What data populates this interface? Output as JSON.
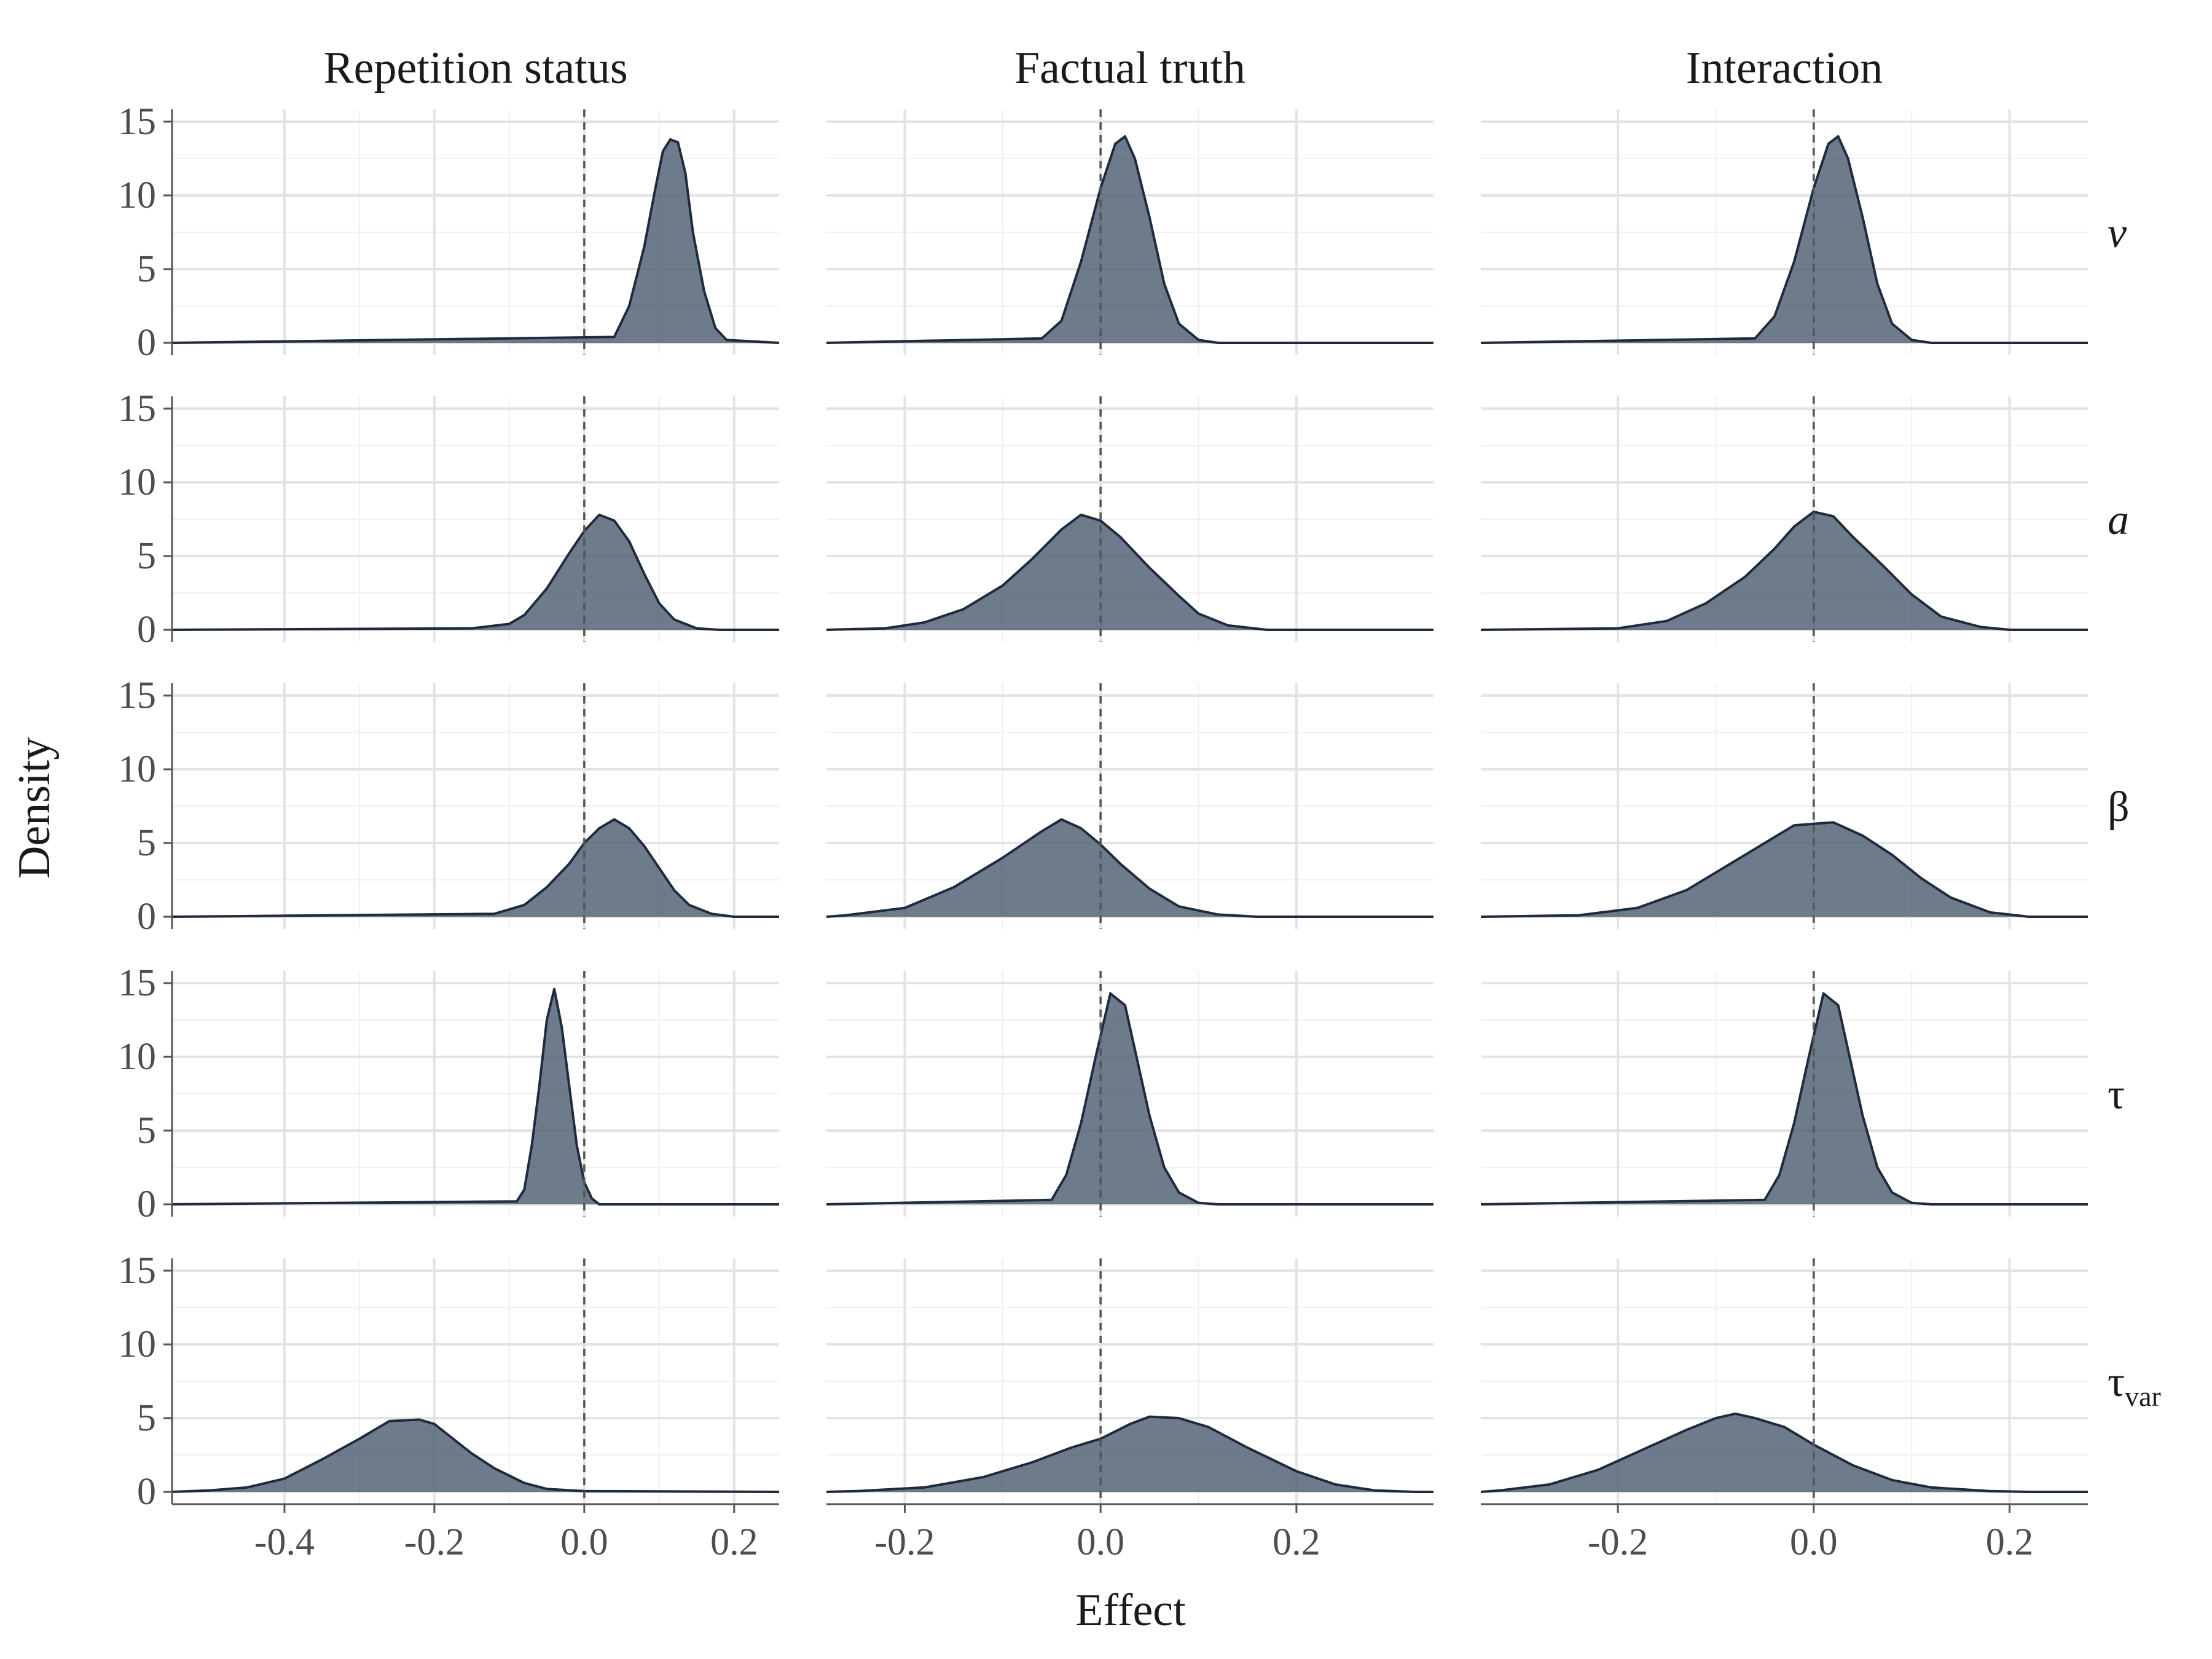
{
  "chart_data": {
    "type": "area",
    "xlabel": "Effect",
    "ylabel": "Density",
    "ylim": [
      0,
      15
    ],
    "yticks": [
      0,
      5,
      10,
      15
    ],
    "grid": true,
    "reference_line_x": 0,
    "fill_color": "#4a5a6e",
    "line_color": "#1f2b3d",
    "columns": [
      {
        "label": "Repetition status",
        "xlim": [
          -0.55,
          0.26
        ],
        "xticks": [
          -0.4,
          -0.2,
          0.0,
          0.2
        ],
        "xtick_labels": [
          "-0.4",
          "-0.2",
          "0.0",
          "0.2"
        ]
      },
      {
        "label": "Factual truth",
        "xlim": [
          -0.28,
          0.34
        ],
        "xticks": [
          -0.2,
          0.0,
          0.2
        ],
        "xtick_labels": [
          "-0.2",
          "0.0",
          "0.2"
        ]
      },
      {
        "label": "Interaction",
        "xlim": [
          -0.34,
          0.28
        ],
        "xticks": [
          -0.2,
          0.0,
          0.2
        ],
        "xtick_labels": [
          "-0.2",
          "0.0",
          "0.2"
        ]
      }
    ],
    "rows": [
      {
        "label": "v",
        "italic": true,
        "subscript": ""
      },
      {
        "label": "a",
        "italic": true,
        "subscript": ""
      },
      {
        "label": "β",
        "italic": false,
        "subscript": ""
      },
      {
        "label": "τ",
        "italic": false,
        "subscript": ""
      },
      {
        "label": "τ",
        "italic": false,
        "subscript": "var"
      }
    ],
    "panels": [
      [
        {
          "peak": 13.8,
          "points": [
            [
              0.04,
              0.4
            ],
            [
              0.06,
              2.5
            ],
            [
              0.08,
              6.5
            ],
            [
              0.095,
              10.5
            ],
            [
              0.105,
              13.0
            ],
            [
              0.115,
              13.8
            ],
            [
              0.125,
              13.6
            ],
            [
              0.135,
              11.5
            ],
            [
              0.145,
              7.5
            ],
            [
              0.16,
              3.5
            ],
            [
              0.175,
              1.0
            ],
            [
              0.19,
              0.2
            ]
          ]
        },
        {
          "peak": 7.8,
          "points": [
            [
              -0.15,
              0.1
            ],
            [
              -0.1,
              0.4
            ],
            [
              -0.08,
              1.0
            ],
            [
              -0.05,
              2.8
            ],
            [
              -0.02,
              5.2
            ],
            [
              0.0,
              6.7
            ],
            [
              0.02,
              7.8
            ],
            [
              0.04,
              7.4
            ],
            [
              0.06,
              6.0
            ],
            [
              0.08,
              3.8
            ],
            [
              0.1,
              1.8
            ],
            [
              0.12,
              0.7
            ],
            [
              0.15,
              0.1
            ],
            [
              0.18,
              0.0
            ]
          ]
        },
        {
          "peak": 6.6,
          "points": [
            [
              -0.12,
              0.2
            ],
            [
              -0.08,
              0.8
            ],
            [
              -0.05,
              2.0
            ],
            [
              -0.02,
              3.6
            ],
            [
              0.0,
              5.0
            ],
            [
              0.02,
              6.0
            ],
            [
              0.04,
              6.6
            ],
            [
              0.06,
              6.0
            ],
            [
              0.08,
              4.8
            ],
            [
              0.1,
              3.3
            ],
            [
              0.12,
              1.8
            ],
            [
              0.14,
              0.8
            ],
            [
              0.17,
              0.2
            ],
            [
              0.2,
              0.0
            ]
          ]
        },
        {
          "peak": 14.6,
          "points": [
            [
              -0.09,
              0.2
            ],
            [
              -0.08,
              1.0
            ],
            [
              -0.07,
              4.0
            ],
            [
              -0.06,
              8.0
            ],
            [
              -0.05,
              12.5
            ],
            [
              -0.04,
              14.6
            ],
            [
              -0.03,
              12.0
            ],
            [
              -0.02,
              8.0
            ],
            [
              -0.01,
              4.0
            ],
            [
              0.0,
              1.5
            ],
            [
              0.01,
              0.4
            ],
            [
              0.02,
              0.0
            ]
          ]
        },
        {
          "peak": 4.9,
          "points": [
            [
              -0.5,
              0.1
            ],
            [
              -0.45,
              0.3
            ],
            [
              -0.4,
              0.9
            ],
            [
              -0.35,
              2.2
            ],
            [
              -0.3,
              3.6
            ],
            [
              -0.26,
              4.8
            ],
            [
              -0.22,
              4.9
            ],
            [
              -0.2,
              4.6
            ],
            [
              -0.18,
              3.8
            ],
            [
              -0.15,
              2.6
            ],
            [
              -0.12,
              1.6
            ],
            [
              -0.08,
              0.6
            ],
            [
              -0.05,
              0.2
            ],
            [
              0.0,
              0.05
            ]
          ]
        }
      ],
      [
        {
          "peak": 14.0,
          "points": [
            [
              -0.06,
              0.3
            ],
            [
              -0.04,
              1.5
            ],
            [
              -0.02,
              5.5
            ],
            [
              0.0,
              10.5
            ],
            [
              0.015,
              13.5
            ],
            [
              0.025,
              14.0
            ],
            [
              0.035,
              12.5
            ],
            [
              0.05,
              8.5
            ],
            [
              0.065,
              4.0
            ],
            [
              0.08,
              1.3
            ],
            [
              0.1,
              0.2
            ],
            [
              0.12,
              0.0
            ]
          ]
        },
        {
          "peak": 7.8,
          "points": [
            [
              -0.22,
              0.1
            ],
            [
              -0.18,
              0.5
            ],
            [
              -0.14,
              1.4
            ],
            [
              -0.1,
              3.0
            ],
            [
              -0.07,
              4.8
            ],
            [
              -0.04,
              6.8
            ],
            [
              -0.02,
              7.8
            ],
            [
              0.0,
              7.4
            ],
            [
              0.02,
              6.3
            ],
            [
              0.05,
              4.2
            ],
            [
              0.08,
              2.3
            ],
            [
              0.1,
              1.1
            ],
            [
              0.13,
              0.3
            ],
            [
              0.17,
              0.0
            ]
          ]
        },
        {
          "peak": 6.6,
          "points": [
            [
              -0.26,
              0.1
            ],
            [
              -0.2,
              0.6
            ],
            [
              -0.15,
              2.0
            ],
            [
              -0.1,
              4.0
            ],
            [
              -0.06,
              5.8
            ],
            [
              -0.04,
              6.6
            ],
            [
              -0.02,
              6.0
            ],
            [
              0.0,
              4.9
            ],
            [
              0.02,
              3.6
            ],
            [
              0.05,
              1.9
            ],
            [
              0.08,
              0.7
            ],
            [
              0.12,
              0.15
            ],
            [
              0.16,
              0.0
            ]
          ]
        },
        {
          "peak": 14.3,
          "points": [
            [
              -0.05,
              0.3
            ],
            [
              -0.035,
              2.0
            ],
            [
              -0.02,
              5.5
            ],
            [
              -0.005,
              10.0
            ],
            [
              0.01,
              14.3
            ],
            [
              0.025,
              13.5
            ],
            [
              0.035,
              10.5
            ],
            [
              0.05,
              6.0
            ],
            [
              0.065,
              2.5
            ],
            [
              0.08,
              0.8
            ],
            [
              0.1,
              0.1
            ],
            [
              0.12,
              0.0
            ]
          ]
        },
        {
          "peak": 5.1,
          "points": [
            [
              -0.25,
              0.05
            ],
            [
              -0.18,
              0.3
            ],
            [
              -0.12,
              1.0
            ],
            [
              -0.07,
              2.0
            ],
            [
              -0.03,
              3.0
            ],
            [
              0.0,
              3.6
            ],
            [
              0.03,
              4.6
            ],
            [
              0.05,
              5.1
            ],
            [
              0.08,
              5.0
            ],
            [
              0.11,
              4.4
            ],
            [
              0.15,
              3.0
            ],
            [
              0.2,
              1.4
            ],
            [
              0.24,
              0.5
            ],
            [
              0.28,
              0.1
            ],
            [
              0.32,
              0.0
            ]
          ]
        }
      ],
      [
        {
          "peak": 14.0,
          "points": [
            [
              -0.06,
              0.3
            ],
            [
              -0.04,
              1.8
            ],
            [
              -0.02,
              5.5
            ],
            [
              0.0,
              10.5
            ],
            [
              0.015,
              13.5
            ],
            [
              0.025,
              14.0
            ],
            [
              0.035,
              12.5
            ],
            [
              0.05,
              8.5
            ],
            [
              0.065,
              4.0
            ],
            [
              0.08,
              1.3
            ],
            [
              0.1,
              0.2
            ],
            [
              0.12,
              0.0
            ]
          ]
        },
        {
          "peak": 8.0,
          "points": [
            [
              -0.2,
              0.1
            ],
            [
              -0.15,
              0.6
            ],
            [
              -0.11,
              1.8
            ],
            [
              -0.07,
              3.6
            ],
            [
              -0.04,
              5.5
            ],
            [
              -0.02,
              7.0
            ],
            [
              0.0,
              8.0
            ],
            [
              0.02,
              7.7
            ],
            [
              0.04,
              6.3
            ],
            [
              0.07,
              4.4
            ],
            [
              0.1,
              2.4
            ],
            [
              0.13,
              0.9
            ],
            [
              0.17,
              0.2
            ],
            [
              0.2,
              0.0
            ]
          ]
        },
        {
          "peak": 6.4,
          "points": [
            [
              -0.24,
              0.1
            ],
            [
              -0.18,
              0.6
            ],
            [
              -0.13,
              1.8
            ],
            [
              -0.09,
              3.4
            ],
            [
              -0.05,
              5.0
            ],
            [
              -0.02,
              6.2
            ],
            [
              0.0,
              6.3
            ],
            [
              0.02,
              6.4
            ],
            [
              0.05,
              5.5
            ],
            [
              0.08,
              4.2
            ],
            [
              0.11,
              2.6
            ],
            [
              0.14,
              1.3
            ],
            [
              0.18,
              0.3
            ],
            [
              0.22,
              0.0
            ]
          ]
        },
        {
          "peak": 14.3,
          "points": [
            [
              -0.05,
              0.3
            ],
            [
              -0.035,
              2.0
            ],
            [
              -0.02,
              5.5
            ],
            [
              -0.005,
              10.0
            ],
            [
              0.01,
              14.3
            ],
            [
              0.025,
              13.5
            ],
            [
              0.035,
              10.5
            ],
            [
              0.05,
              6.0
            ],
            [
              0.065,
              2.5
            ],
            [
              0.08,
              0.8
            ],
            [
              0.1,
              0.1
            ],
            [
              0.12,
              0.0
            ]
          ]
        },
        {
          "peak": 5.3,
          "points": [
            [
              -0.32,
              0.1
            ],
            [
              -0.27,
              0.5
            ],
            [
              -0.22,
              1.5
            ],
            [
              -0.17,
              3.0
            ],
            [
              -0.13,
              4.2
            ],
            [
              -0.1,
              5.0
            ],
            [
              -0.08,
              5.3
            ],
            [
              -0.06,
              5.0
            ],
            [
              -0.03,
              4.4
            ],
            [
              0.0,
              3.2
            ],
            [
              0.04,
              1.8
            ],
            [
              0.08,
              0.8
            ],
            [
              0.12,
              0.3
            ],
            [
              0.18,
              0.05
            ],
            [
              0.22,
              0.0
            ]
          ]
        }
      ]
    ]
  }
}
